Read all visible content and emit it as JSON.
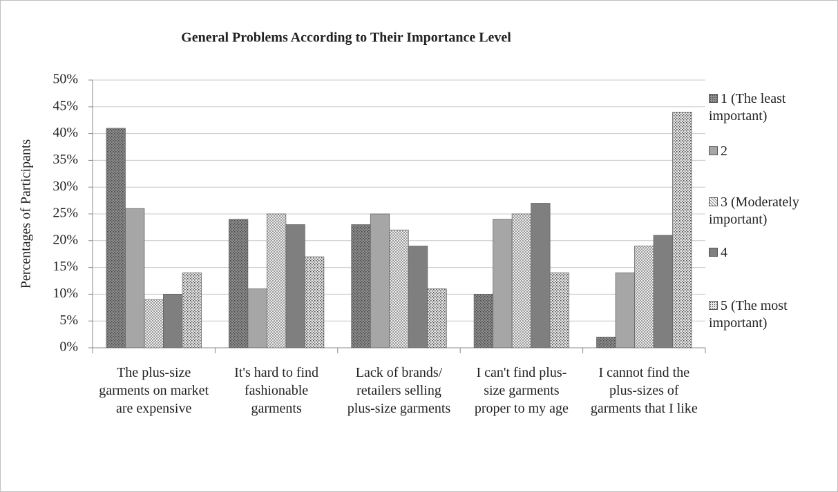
{
  "chart_data": {
    "type": "bar",
    "title": "General Problems According to Their Importance Level",
    "y_label": "Percentages of Participants",
    "categories": [
      "The plus-size garments on market are expensive",
      "It's hard to find fashionable garments",
      "Lack of brands/ retailers selling plus-size garments",
      "I can't find plus-size garments proper to my age",
      "I cannot find the plus-sizes of garments that I like"
    ],
    "series": [
      {
        "name": "1 (The least important)",
        "color": "#8c8c8c",
        "pattern": "dots",
        "values": [
          41,
          24,
          23,
          10,
          2
        ]
      },
      {
        "name": "2",
        "color": "#a6a6a6",
        "pattern": "solid",
        "values": [
          26,
          11,
          25,
          24,
          14
        ]
      },
      {
        "name": "3 (Moderately important)",
        "color": "#ffffff",
        "pattern": "cross",
        "values": [
          9,
          25,
          22,
          25,
          19
        ]
      },
      {
        "name": "4",
        "color": "#7f7f7f",
        "pattern": "solid",
        "values": [
          10,
          23,
          19,
          27,
          21
        ]
      },
      {
        "name": "5 (The most important)",
        "color": "#e6e6e6",
        "pattern": "dots",
        "values": [
          14,
          17,
          11,
          14,
          44
        ]
      }
    ],
    "ylim": [
      0,
      50
    ],
    "yticks": [
      {
        "value": 0,
        "label": "0%"
      },
      {
        "value": 5,
        "label": "5%"
      },
      {
        "value": 10,
        "label": "10%"
      },
      {
        "value": 15,
        "label": "15%"
      },
      {
        "value": 20,
        "label": "20%"
      },
      {
        "value": 25,
        "label": "25%"
      },
      {
        "value": 30,
        "label": "30%"
      },
      {
        "value": 35,
        "label": "35%"
      },
      {
        "value": 40,
        "label": "40%"
      },
      {
        "value": 45,
        "label": "45%"
      },
      {
        "value": 50,
        "label": "50%"
      }
    ],
    "grid": true,
    "legend": "right"
  }
}
